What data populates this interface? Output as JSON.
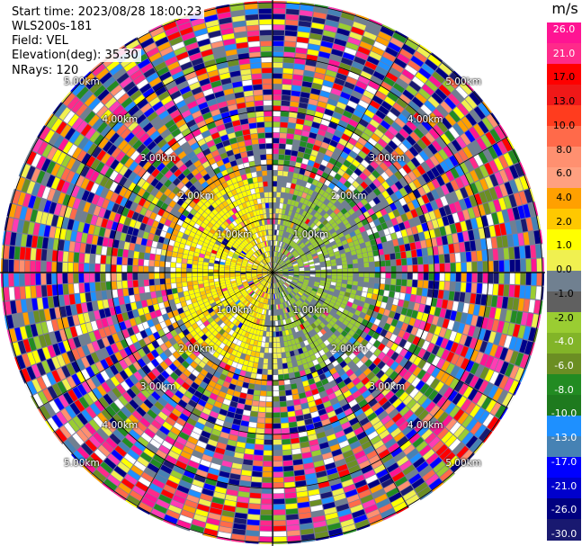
{
  "header": {
    "start_time": "Start time: 2023/08/28 18:00:23",
    "instrument": "WLS200s-181",
    "field": "Field: VEL",
    "elevation": "Elevation(deg): 35.30",
    "nrays": "NRays: 120"
  },
  "range_rings": [
    {
      "label": "1.00km"
    },
    {
      "label": "2.00km"
    },
    {
      "label": "3.00km"
    },
    {
      "label": "4.00km"
    },
    {
      "label": "5.00km"
    }
  ],
  "colorbar": {
    "unit": "m/s",
    "ticks": [
      "26.0",
      "21.0",
      "17.0",
      "13.0",
      "10.0",
      "8.0",
      "6.0",
      "4.0",
      "2.0",
      "1.0",
      "0.0",
      "-1.0",
      "-2.0",
      "-4.0",
      "-6.0",
      "-8.0",
      "-10.0",
      "-13.0",
      "-17.0",
      "-21.0",
      "-26.0",
      "-30.0"
    ],
    "colors": [
      "#ff1493",
      "#ff2a8a",
      "#ff0000",
      "#f01818",
      "#ff3c1e",
      "#ff6a4a",
      "#ff9070",
      "#ffa080",
      "#ffa000",
      "#ffc800",
      "#ffff00",
      "#f0f050",
      "#708090",
      "#606060",
      "#9acd32",
      "#82b428",
      "#6b8e23",
      "#228b22",
      "#1e7a1e",
      "#1e90ff",
      "#4682b4",
      "#0000ff",
      "#0000cd",
      "#000080",
      "#191970"
    ]
  },
  "icons": [
    "crosshair-icon"
  ]
}
